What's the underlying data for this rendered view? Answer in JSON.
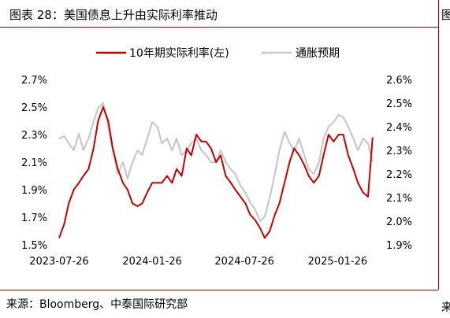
{
  "title": "图表 28：美国债息上升由实际利率推动",
  "source": "来源：Bloomberg、中泰国际研究部",
  "edge_glyph_top": "图",
  "edge_glyph_bottom": "来",
  "chart_data": {
    "type": "line",
    "x_ticks": [
      "2023-07-26",
      "2024-01-26",
      "2024-07-26",
      "2025-01-26"
    ],
    "x_range": [
      "2023-07-26",
      "2025-04-10"
    ],
    "y_left": {
      "ticks": [
        "2.7%",
        "2.5%",
        "2.3%",
        "2.1%",
        "1.9%",
        "1.7%",
        "1.5%"
      ],
      "range": [
        1.5,
        2.7
      ]
    },
    "y_right": {
      "ticks": [
        "2.6%",
        "2.5%",
        "2.4%",
        "2.3%",
        "2.2%",
        "2.1%",
        "2.0%",
        "1.9%"
      ],
      "range": [
        1.9,
        2.6
      ]
    },
    "grid": false,
    "legend_position": "top",
    "series": [
      {
        "name": "10年期实际利率(左)",
        "axis": "left",
        "color": "#c00000",
        "x": [
          "2023-07-26",
          "2023-08-05",
          "2023-08-14",
          "2023-08-24",
          "2023-09-03",
          "2023-09-12",
          "2023-09-22",
          "2023-10-02",
          "2023-10-11",
          "2023-10-21",
          "2023-10-31",
          "2023-11-09",
          "2023-11-19",
          "2023-11-29",
          "2023-12-08",
          "2023-12-18",
          "2023-12-28",
          "2024-01-06",
          "2024-01-16",
          "2024-01-26",
          "2024-02-05",
          "2024-02-14",
          "2024-02-24",
          "2024-03-05",
          "2024-03-14",
          "2024-03-24",
          "2024-04-03",
          "2024-04-12",
          "2024-04-22",
          "2024-05-02",
          "2024-05-11",
          "2024-05-21",
          "2024-05-31",
          "2024-06-09",
          "2024-06-19",
          "2024-06-29",
          "2024-07-08",
          "2024-07-18",
          "2024-07-28",
          "2024-08-06",
          "2024-08-16",
          "2024-08-26",
          "2024-09-04",
          "2024-09-14",
          "2024-09-24",
          "2024-10-03",
          "2024-10-13",
          "2024-10-23",
          "2024-11-01",
          "2024-11-11",
          "2024-11-21",
          "2024-11-30",
          "2024-12-10",
          "2024-12-20",
          "2024-12-29",
          "2025-01-08",
          "2025-01-18",
          "2025-01-28",
          "2025-02-06",
          "2025-02-16",
          "2025-02-26",
          "2025-03-07",
          "2025-03-17",
          "2025-03-27",
          "2025-04-05"
        ],
        "y": [
          1.55,
          1.65,
          1.8,
          1.9,
          1.95,
          2.0,
          2.05,
          2.2,
          2.4,
          2.5,
          2.4,
          2.2,
          2.05,
          1.95,
          1.9,
          1.8,
          1.78,
          1.8,
          1.88,
          1.95,
          1.95,
          1.95,
          2.0,
          1.95,
          2.05,
          2.0,
          2.2,
          2.15,
          2.3,
          2.25,
          2.25,
          2.2,
          2.1,
          2.15,
          2.0,
          1.95,
          1.9,
          1.85,
          1.8,
          1.72,
          1.68,
          1.62,
          1.55,
          1.6,
          1.72,
          1.8,
          1.95,
          2.1,
          2.2,
          2.15,
          2.08,
          2.0,
          1.95,
          2.0,
          2.15,
          2.3,
          2.25,
          2.3,
          2.3,
          2.15,
          2.05,
          1.95,
          1.88,
          1.85,
          2.28
        ]
      },
      {
        "name": "通胀预期",
        "axis": "right",
        "color": "#c8c8c8",
        "x": [
          "2023-07-26",
          "2023-08-05",
          "2023-08-14",
          "2023-08-24",
          "2023-09-03",
          "2023-09-12",
          "2023-09-22",
          "2023-10-02",
          "2023-10-11",
          "2023-10-21",
          "2023-10-31",
          "2023-11-09",
          "2023-11-19",
          "2023-11-29",
          "2023-12-08",
          "2023-12-18",
          "2023-12-28",
          "2024-01-06",
          "2024-01-16",
          "2024-01-26",
          "2024-02-05",
          "2024-02-14",
          "2024-02-24",
          "2024-03-05",
          "2024-03-14",
          "2024-03-24",
          "2024-04-03",
          "2024-04-12",
          "2024-04-22",
          "2024-05-02",
          "2024-05-11",
          "2024-05-21",
          "2024-05-31",
          "2024-06-09",
          "2024-06-19",
          "2024-06-29",
          "2024-07-08",
          "2024-07-18",
          "2024-07-28",
          "2024-08-06",
          "2024-08-16",
          "2024-08-26",
          "2024-09-04",
          "2024-09-14",
          "2024-09-24",
          "2024-10-03",
          "2024-10-13",
          "2024-10-23",
          "2024-11-01",
          "2024-11-11",
          "2024-11-21",
          "2024-11-30",
          "2024-12-10",
          "2024-12-20",
          "2024-12-29",
          "2025-01-08",
          "2025-01-18",
          "2025-01-28",
          "2025-02-06",
          "2025-02-16",
          "2025-02-26",
          "2025-03-07",
          "2025-03-17",
          "2025-03-27",
          "2025-04-05"
        ],
        "y": [
          2.35,
          2.36,
          2.33,
          2.3,
          2.37,
          2.3,
          2.35,
          2.42,
          2.48,
          2.5,
          2.4,
          2.3,
          2.2,
          2.25,
          2.18,
          2.25,
          2.3,
          2.28,
          2.35,
          2.42,
          2.4,
          2.33,
          2.35,
          2.3,
          2.35,
          2.28,
          2.3,
          2.33,
          2.35,
          2.3,
          2.28,
          2.25,
          2.25,
          2.3,
          2.25,
          2.22,
          2.2,
          2.15,
          2.12,
          2.08,
          2.05,
          2.0,
          2.02,
          2.1,
          2.2,
          2.3,
          2.38,
          2.33,
          2.3,
          2.35,
          2.28,
          2.22,
          2.2,
          2.25,
          2.35,
          2.4,
          2.42,
          2.45,
          2.44,
          2.4,
          2.35,
          2.3,
          2.35,
          2.33,
          2.25
        ]
      }
    ]
  }
}
